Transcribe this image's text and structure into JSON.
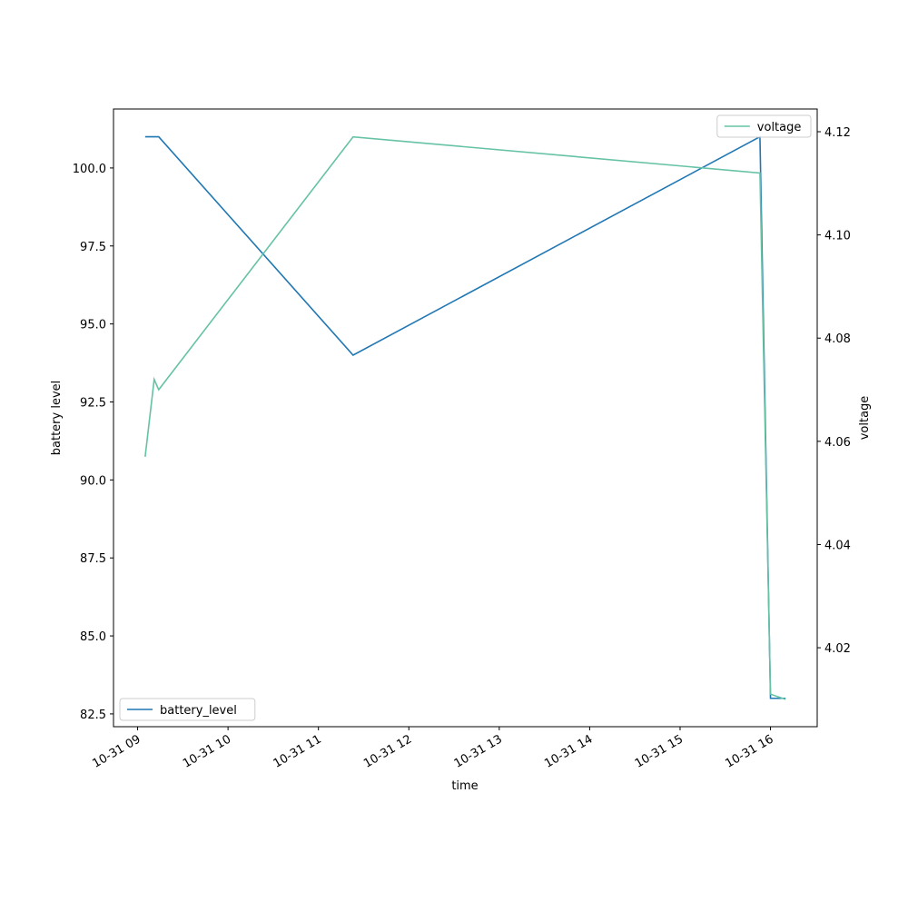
{
  "chart_data": {
    "type": "line",
    "x_label": "time",
    "y_label": "battery level",
    "y2_label": "voltage",
    "xlim": [
      "10-31 08:44",
      "10-31 16:31"
    ],
    "xticks": [
      "10-31 09",
      "10-31 10",
      "10-31 11",
      "10-31 12",
      "10-31 13",
      "10-31 14",
      "10-31 15",
      "10-31 16"
    ],
    "ylim": [
      82.09,
      101.89
    ],
    "yticks": [
      82.5,
      {
        "value": 85,
        "label": "85.0"
      },
      87.5,
      {
        "value": 90,
        "label": "90.0"
      },
      92.5,
      {
        "value": 95,
        "label": "95.0"
      },
      97.5,
      {
        "value": 100,
        "label": "100.0"
      }
    ],
    "y2lim": [
      4.0047,
      4.1244
    ],
    "y2ticks": [
      4.02,
      4.04,
      4.06,
      4.08,
      {
        "value": 4.1,
        "label": "4.10"
      },
      4.12
    ],
    "legend": "lower left",
    "legend2": "upper right",
    "series": [
      {
        "name": "battery_level",
        "color": "#1f77b4",
        "x": [
          "10-31 09:05",
          "10-31 09:14",
          "10-31 11:23",
          "10-31 15:53",
          "10-31 16:00",
          "10-31 16:10"
        ],
        "values": [
          101,
          101,
          94,
          101,
          83,
          83
        ]
      },
      {
        "name": "voltage",
        "color": "#66c2a5",
        "axis": "y2",
        "x": [
          "10-31 09:05",
          "10-31 09:11",
          "10-31 09:14",
          "10-31 11:23",
          "10-31 15:53",
          "10-31 16:00",
          "10-31 16:10"
        ],
        "values": [
          4.057,
          4.072,
          4.07,
          4.119,
          4.112,
          4.011,
          4.01
        ]
      }
    ]
  }
}
